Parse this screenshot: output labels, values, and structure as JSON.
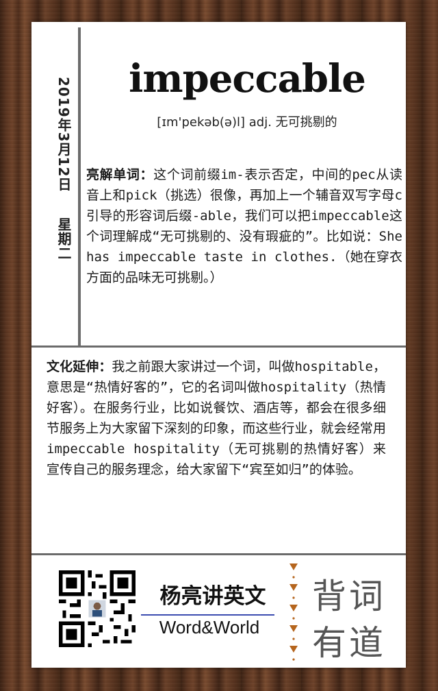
{
  "date": {
    "date_text": "2019年3月12日",
    "weekday": "星期二"
  },
  "entry": {
    "word": "impeccable",
    "pronunciation": "[ɪm'pekəb(ə)l] adj. 无可挑剔的"
  },
  "explanation": {
    "label": "亮解单词：",
    "text": "这个词前缀im-表示否定，中间的pec从读音上和pick（挑选）很像，再加上一个辅音双写字母c引导的形容词后缀-able，我们可以把impeccable这个词理解成“无可挑剔的、没有瑕疵的”。比如说：She has impeccable taste in clothes.（她在穿衣方面的品味无可挑剔。）"
  },
  "culture": {
    "label": "文化延伸：",
    "text": "我之前跟大家讲过一个词，叫做hospitable，意思是“热情好客的”，它的名词叫做hospitality（热情好客）。在服务行业，比如说餐饮、酒店等，都会在很多细节服务上为大家留下深刻的印象，而这些行业，就会经常用impeccable hospitality（无可挑剔的热情好客）来宣传自己的服务理念，给大家留下“宾至如归”的体验。"
  },
  "footer": {
    "brand_cn": "杨亮讲英文",
    "brand_en": "Word&World",
    "slogan_line1": "背词",
    "slogan_line2": "有道",
    "qr_icon": "qr-code-icon",
    "accent_color": "#b5651d"
  }
}
